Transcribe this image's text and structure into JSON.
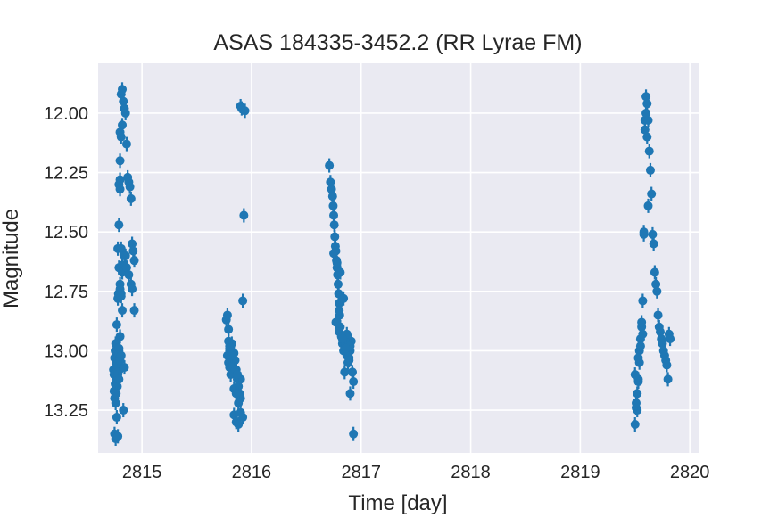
{
  "chart_data": {
    "type": "scatter",
    "title": "ASAS 184335-3452.2 (RR Lyrae FM)",
    "xlabel": "Time [day]",
    "ylabel": "Magnitude",
    "xlim": [
      2814.6,
      2820.08
    ],
    "ylim": [
      13.43,
      11.79
    ],
    "y_inverted": true,
    "xticks": [
      2815,
      2816,
      2817,
      2818,
      2819,
      2820
    ],
    "xtick_labels": [
      "2815",
      "2816",
      "2817",
      "2818",
      "2819",
      "2820"
    ],
    "yticks": [
      12.0,
      12.25,
      12.5,
      12.75,
      13.0,
      13.25
    ],
    "ytick_labels": [
      "12.00",
      "12.25",
      "12.50",
      "12.75",
      "13.00",
      "13.25"
    ],
    "grid": true,
    "colors": {
      "background": "#eaeaf2",
      "grid": "#ffffff",
      "marker": "#1f77b4"
    },
    "series": [
      {
        "marker": "circle-with-errorbar",
        "x": [
          2814.74,
          2814.745,
          2814.75,
          2814.755,
          2814.76,
          2814.765,
          2814.77,
          2814.775,
          2814.78,
          2814.785,
          2814.79,
          2814.795,
          2814.8,
          2814.745,
          2814.75,
          2814.755,
          2814.76,
          2814.765,
          2814.77,
          2814.775,
          2814.78,
          2814.785,
          2814.79,
          2814.75,
          2814.76,
          2814.77,
          2814.78,
          2814.79,
          2814.8,
          2814.77,
          2814.78,
          2814.785,
          2814.79,
          2814.78,
          2814.79,
          2814.8,
          2814.81,
          2814.82,
          2814.8,
          2814.81,
          2814.82,
          2814.83,
          2814.84,
          2814.85,
          2814.86,
          2814.87,
          2814.88,
          2814.89,
          2814.9,
          2814.91,
          2814.92,
          2814.93,
          2814.85,
          2814.82,
          2814.82,
          2814.8,
          2814.81,
          2814.8,
          2814.81,
          2814.82,
          2814.83,
          2814.84,
          2814.79,
          2814.8,
          2814.8,
          2814.81,
          2814.84,
          2814.86,
          2814.88,
          2814.9,
          2814.91,
          2814.93,
          2814.79,
          2814.81,
          2814.8,
          2814.78
        ],
        "y": [
          13.08,
          13.1,
          13.03,
          13.0,
          12.97,
          13.05,
          13.12,
          13.15,
          13.05,
          13.02,
          13.0,
          13.08,
          13.03,
          13.17,
          13.2,
          13.14,
          13.22,
          13.18,
          13.0,
          13.06,
          13.09,
          13.04,
          13.01,
          13.35,
          13.37,
          13.28,
          13.1,
          13.12,
          13.04,
          12.89,
          12.78,
          12.76,
          12.65,
          12.57,
          12.47,
          12.2,
          12.1,
          12.05,
          12.08,
          11.92,
          11.9,
          11.95,
          11.98,
          12.0,
          12.13,
          12.27,
          12.29,
          12.31,
          12.36,
          12.55,
          12.58,
          12.62,
          12.6,
          12.64,
          12.67,
          12.72,
          12.76,
          12.74,
          12.77,
          12.83,
          13.25,
          13.07,
          12.3,
          12.28,
          12.32,
          12.57,
          12.6,
          12.65,
          12.68,
          12.72,
          12.74,
          12.83,
          12.99,
          13.02,
          12.94,
          13.36
        ],
        "yerr": 0.03
      },
      {
        "marker": "circle-with-errorbar",
        "x": [
          2815.77,
          2815.78,
          2815.79,
          2815.8,
          2815.81,
          2815.78,
          2815.79,
          2815.8,
          2815.81,
          2815.82,
          2815.83,
          2815.84,
          2815.85,
          2815.86,
          2815.87,
          2815.88,
          2815.89,
          2815.9,
          2815.8,
          2815.82,
          2815.84,
          2815.86,
          2815.88,
          2815.9,
          2815.92,
          2815.84,
          2815.86,
          2815.88,
          2815.9,
          2815.93,
          2815.92,
          2815.9,
          2815.91,
          2815.94,
          2815.82,
          2815.85,
          2815.87,
          2815.79,
          2815.8
        ],
        "y": [
          12.87,
          12.85,
          12.91,
          12.98,
          13.0,
          13.02,
          13.05,
          13.07,
          13.1,
          13.03,
          13.06,
          13.01,
          13.04,
          13.08,
          13.12,
          13.15,
          13.18,
          13.2,
          13.0,
          13.02,
          13.16,
          13.18,
          13.22,
          13.26,
          13.28,
          13.27,
          13.3,
          13.31,
          13.12,
          12.43,
          12.79,
          11.97,
          11.98,
          11.99,
          12.97,
          13.08,
          13.1,
          12.96,
          12.99
        ],
        "yerr": 0.03
      },
      {
        "marker": "circle-with-errorbar",
        "x": [
          2816.71,
          2816.72,
          2816.73,
          2816.74,
          2816.745,
          2816.75,
          2816.755,
          2816.76,
          2816.765,
          2816.77,
          2816.775,
          2816.78,
          2816.785,
          2816.79,
          2816.795,
          2816.8,
          2816.805,
          2816.81,
          2816.82,
          2816.83,
          2816.84,
          2816.85,
          2816.86,
          2816.87,
          2816.88,
          2816.89,
          2816.9,
          2816.91,
          2816.92,
          2816.8,
          2816.85,
          2816.9,
          2816.93,
          2816.75,
          2816.78,
          2816.81,
          2816.84,
          2816.87,
          2816.9,
          2816.93,
          2816.77,
          2816.8,
          2816.83,
          2816.86,
          2816.89,
          2816.92
        ],
        "y": [
          12.22,
          12.29,
          12.32,
          12.35,
          12.39,
          12.43,
          12.47,
          12.52,
          12.56,
          12.58,
          12.62,
          12.65,
          12.68,
          12.72,
          12.76,
          12.8,
          12.85,
          12.9,
          12.94,
          12.97,
          13.0,
          12.96,
          12.98,
          13.02,
          13.05,
          13.03,
          13.0,
          12.96,
          13.09,
          12.83,
          13.09,
          13.18,
          13.35,
          12.59,
          12.63,
          12.67,
          12.78,
          12.93,
          12.98,
          13.13,
          12.88,
          12.92,
          12.95,
          12.99,
          13.04,
          13.09
        ],
        "yerr": 0.03
      },
      {
        "marker": "circle-with-errorbar",
        "x": [
          2819.5,
          2819.51,
          2819.52,
          2819.53,
          2819.54,
          2819.55,
          2819.56,
          2819.57,
          2819.58,
          2819.59,
          2819.6,
          2819.61,
          2819.62,
          2819.63,
          2819.64,
          2819.65,
          2819.66,
          2819.67,
          2819.68,
          2819.69,
          2819.7,
          2819.71,
          2819.72,
          2819.73,
          2819.74,
          2819.75,
          2819.76,
          2819.77,
          2819.78,
          2819.79,
          2819.8,
          2819.81,
          2819.82,
          2819.52,
          2819.53,
          2819.54,
          2819.55,
          2819.56,
          2819.57,
          2819.58,
          2819.59,
          2819.6,
          2819.61,
          2819.62,
          2819.5,
          2819.51,
          2819.53
        ],
        "y": [
          13.31,
          13.24,
          13.18,
          13.12,
          13.05,
          12.95,
          12.9,
          12.79,
          12.51,
          12.03,
          11.93,
          11.96,
          12.03,
          12.16,
          12.24,
          12.34,
          12.51,
          12.55,
          12.67,
          12.72,
          12.75,
          12.85,
          12.9,
          12.92,
          12.95,
          12.97,
          13.0,
          13.02,
          13.04,
          13.06,
          13.12,
          12.93,
          12.95,
          13.25,
          13.13,
          13.0,
          12.98,
          12.88,
          12.93,
          12.5,
          12.07,
          12.0,
          12.1,
          12.39,
          13.1,
          13.22,
          13.03
        ],
        "yerr": 0.03
      }
    ]
  }
}
